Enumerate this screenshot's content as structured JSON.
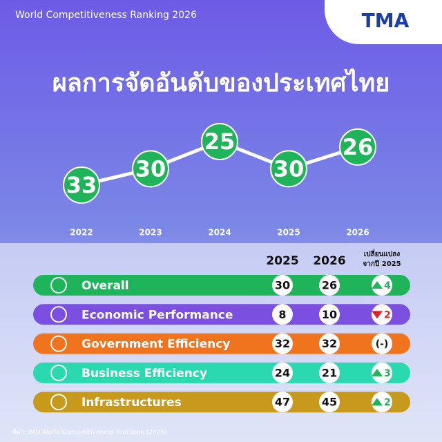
{
  "header_text": "World Competitiveness Ranking 2026",
  "logo": "TMA",
  "chart_data": {
    "type": "line",
    "title": "ผลการจัดอันดับของประเทศไทย",
    "categories": [
      "2022",
      "2023",
      "2024",
      "2025",
      "2026"
    ],
    "values": [
      33,
      30,
      25,
      30,
      26
    ],
    "color": "#1fb45a",
    "line_color": "#ffffff"
  },
  "table": {
    "columns": [
      "2025",
      "2026"
    ],
    "change_header": [
      "เปลี่ยนแปลง",
      "จากปี 2025"
    ],
    "rows": [
      {
        "name": "Overall",
        "color": "#1fb45a",
        "v2025": 30,
        "v2026": 26,
        "change": "4",
        "trend": "up"
      },
      {
        "name": "Economic Performance",
        "color": "#7b4fe0",
        "v2025": 8,
        "v2026": 10,
        "change": "2",
        "trend": "down"
      },
      {
        "name": "Government Efficiency",
        "color": "#f0741e",
        "v2025": 32,
        "v2026": 32,
        "change": "(-)",
        "trend": "flat"
      },
      {
        "name": "Business Efficiency",
        "color": "#2bd9b0",
        "v2025": 24,
        "v2026": 21,
        "change": "3",
        "trend": "up"
      },
      {
        "name": "Infrastructures",
        "color": "#c79a1e",
        "v2025": 47,
        "v2026": 45,
        "change": "2",
        "trend": "up"
      }
    ]
  },
  "source": "ที่มา: IMD World Competitiveness Yearbook (2026)"
}
